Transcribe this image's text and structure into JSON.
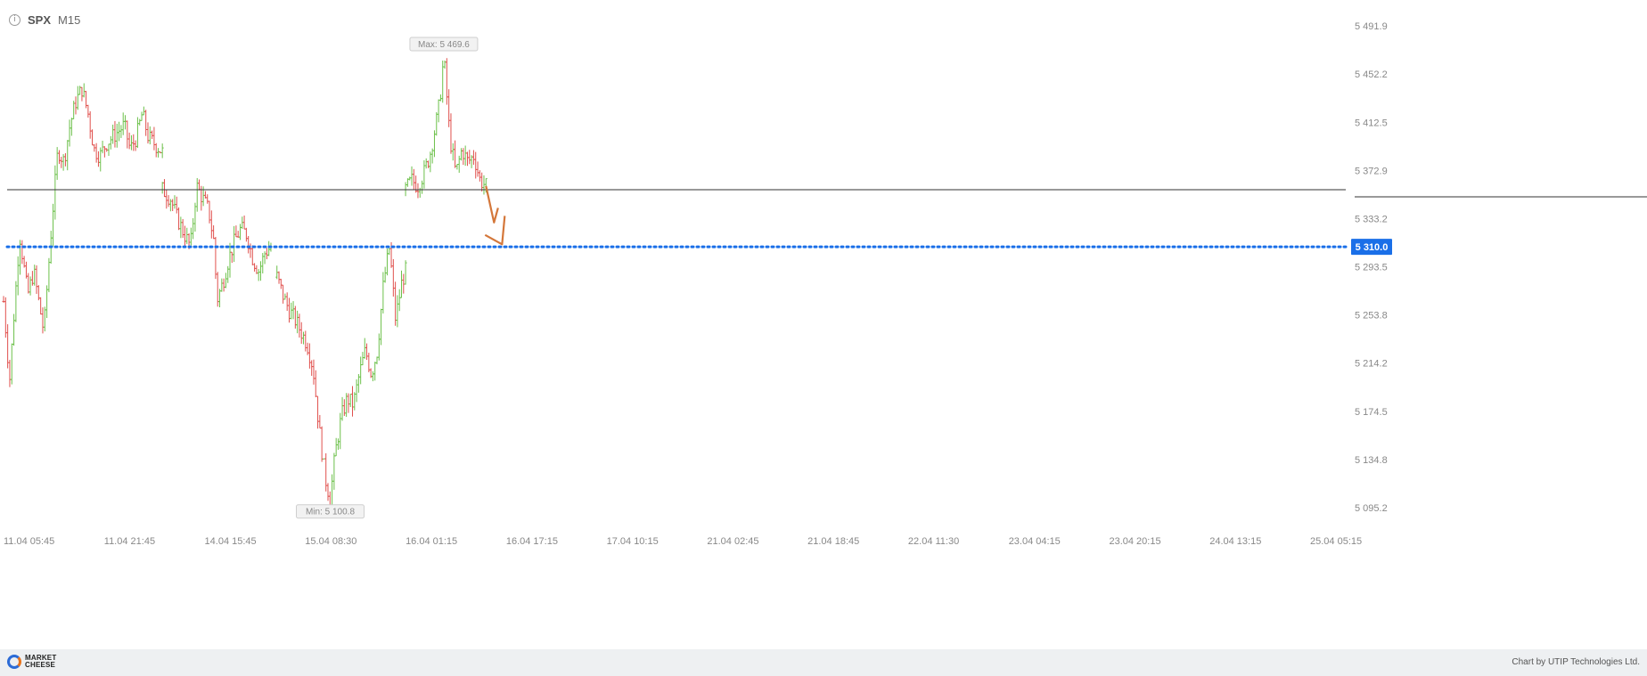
{
  "header": {
    "symbol": "SPX",
    "timeframe": "M15"
  },
  "footer": {
    "brand": "MARKET CHEESE",
    "credit": "Chart by UTIP Technologies Ltd."
  },
  "colors": {
    "up": "#6cc04a",
    "down": "#e0504d",
    "level_line": "#1a6fe8",
    "resistance_line": "#333333",
    "arrow": "#d4773a",
    "badge_bg": "#1a6fe8"
  },
  "chart_data": {
    "type": "ohlc",
    "symbol": "SPX",
    "timeframe": "M15",
    "y_axis": {
      "ticks": [
        "5 491.9",
        "5 452.2",
        "5 412.5",
        "5 372.9",
        "5 333.2",
        "5 293.5",
        "5 253.8",
        "5 214.2",
        "5 174.5",
        "5 134.8",
        "5 095.2"
      ],
      "range": [
        5083,
        5503
      ]
    },
    "x_axis": {
      "ticks": [
        "11.04 05:45",
        "11.04 21:45",
        "14.04 15:45",
        "15.04 08:30",
        "16.04 01:15",
        "16.04 17:15",
        "17.04 10:15",
        "21.04 02:45",
        "21.04 18:45",
        "22.04 11:30",
        "23.04 04:15",
        "23.04 20:15",
        "24.04 13:15",
        "25.04 05:15"
      ]
    },
    "current_price": "5 310.0",
    "markers": {
      "max": "Max: 5 469.6",
      "min": "Min: 5 100.8"
    },
    "horizontal_lines": [
      {
        "name": "resistance",
        "value": 5357,
        "style": "solid"
      },
      {
        "name": "target",
        "value": 5310,
        "style": "dotted"
      }
    ],
    "segments": [
      {
        "points": [
          [
            0,
            5265
          ],
          [
            0.03,
            5200
          ],
          [
            0.05,
            5250
          ],
          [
            0.08,
            5320
          ],
          [
            0.12,
            5270
          ],
          [
            0.15,
            5290
          ],
          [
            0.2,
            5240
          ],
          [
            0.24,
            5330
          ],
          [
            0.27,
            5390
          ],
          [
            0.3,
            5380
          ],
          [
            0.33,
            5410
          ],
          [
            0.36,
            5430
          ],
          [
            0.39,
            5440
          ],
          [
            0.42,
            5420
          ],
          [
            0.45,
            5390
          ],
          [
            0.48,
            5385
          ],
          [
            0.51,
            5395
          ],
          [
            0.54,
            5400
          ],
          [
            0.57,
            5405
          ],
          [
            0.6,
            5410
          ],
          [
            0.63,
            5390
          ],
          [
            0.66,
            5400
          ],
          [
            0.69,
            5420
          ],
          [
            0.72,
            5400
          ],
          [
            0.75,
            5395
          ],
          [
            0.79,
            5388
          ]
        ]
      },
      {
        "points": [
          [
            0.79,
            5357
          ],
          [
            0.83,
            5350
          ],
          [
            0.86,
            5335
          ],
          [
            0.9,
            5320
          ],
          [
            0.93,
            5310
          ],
          [
            0.96,
            5360
          ],
          [
            0.99,
            5350
          ],
          [
            1.02,
            5340
          ],
          [
            1.05,
            5310
          ],
          [
            1.06,
            5265
          ],
          [
            1.09,
            5280
          ],
          [
            1.12,
            5300
          ],
          [
            1.15,
            5315
          ],
          [
            1.18,
            5325
          ],
          [
            1.21,
            5320
          ],
          [
            1.24,
            5300
          ],
          [
            1.27,
            5290
          ],
          [
            1.3,
            5305
          ],
          [
            1.33,
            5310
          ]
        ]
      },
      {
        "points": [
          [
            1.36,
            5285
          ],
          [
            1.39,
            5270
          ],
          [
            1.42,
            5258
          ],
          [
            1.45,
            5250
          ],
          [
            1.48,
            5240
          ],
          [
            1.51,
            5230
          ],
          [
            1.54,
            5210
          ],
          [
            1.57,
            5160
          ],
          [
            1.6,
            5120
          ],
          [
            1.625,
            5102
          ],
          [
            1.65,
            5140
          ],
          [
            1.68,
            5170
          ],
          [
            1.71,
            5185
          ],
          [
            1.74,
            5180
          ],
          [
            1.77,
            5205
          ],
          [
            1.8,
            5225
          ],
          [
            1.83,
            5205
          ],
          [
            1.86,
            5225
          ],
          [
            1.89,
            5280
          ],
          [
            1.92,
            5310
          ],
          [
            1.95,
            5250
          ],
          [
            1.98,
            5280
          ],
          [
            2.0,
            5290
          ]
        ]
      },
      {
        "points": [
          [
            2.0,
            5357
          ],
          [
            2.03,
            5365
          ],
          [
            2.06,
            5360
          ],
          [
            2.09,
            5370
          ],
          [
            2.12,
            5385
          ],
          [
            2.15,
            5410
          ],
          [
            2.17,
            5430
          ],
          [
            2.19,
            5467
          ],
          [
            2.22,
            5400
          ],
          [
            2.25,
            5370
          ],
          [
            2.28,
            5390
          ],
          [
            2.31,
            5380
          ],
          [
            2.34,
            5385
          ],
          [
            2.37,
            5365
          ],
          [
            2.4,
            5360
          ]
        ]
      }
    ],
    "forecast_arrow": [
      [
        2.4,
        5360
      ],
      [
        2.44,
        5330
      ],
      [
        2.46,
        5342
      ],
      [
        2.44,
        5338
      ],
      [
        2.48,
        5312
      ]
    ]
  }
}
